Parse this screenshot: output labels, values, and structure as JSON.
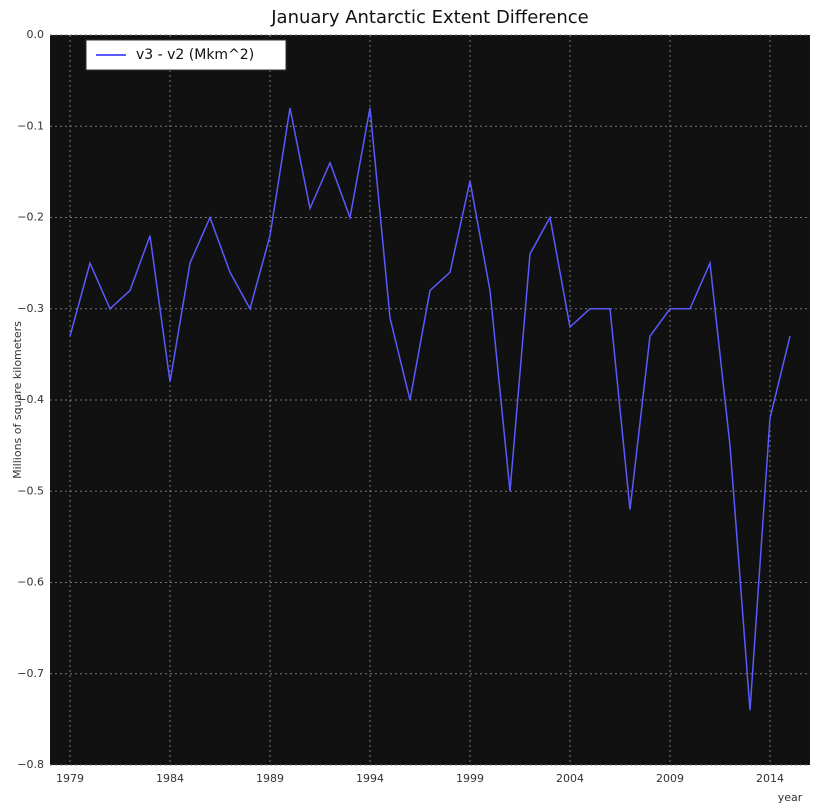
{
  "chart_data": {
    "type": "line",
    "title": "January Antarctic Extent Difference",
    "xlabel": "year",
    "ylabel": "Millions of square kilometers",
    "x": [
      1979,
      1980,
      1981,
      1982,
      1983,
      1984,
      1985,
      1986,
      1987,
      1988,
      1989,
      1990,
      1991,
      1992,
      1993,
      1994,
      1995,
      1996,
      1997,
      1998,
      1999,
      2000,
      2001,
      2002,
      2003,
      2004,
      2005,
      2006,
      2007,
      2008,
      2009,
      2010,
      2011,
      2012,
      2013,
      2014,
      2015
    ],
    "series": [
      {
        "name": "v3 - v2 (Mkm^2)",
        "color": "#5a5aff",
        "values": [
          -0.33,
          -0.25,
          -0.3,
          -0.28,
          -0.22,
          -0.38,
          -0.25,
          -0.2,
          -0.26,
          -0.3,
          -0.22,
          -0.08,
          -0.19,
          -0.14,
          -0.2,
          -0.08,
          -0.31,
          -0.4,
          -0.28,
          -0.26,
          -0.16,
          -0.28,
          -0.5,
          -0.24,
          -0.2,
          -0.32,
          -0.3,
          -0.3,
          -0.52,
          -0.33,
          -0.3,
          -0.3,
          -0.25,
          -0.45,
          -0.74,
          -0.42,
          -0.33
        ]
      }
    ],
    "xlim": [
      1978,
      2016
    ],
    "xticks": [
      1979,
      1984,
      1989,
      1994,
      1999,
      2004,
      2009,
      2014
    ],
    "ylim": [
      -0.8,
      0.0
    ],
    "yticks": [
      {
        "value": -0.8,
        "label": "−0.8"
      },
      {
        "value": -0.7,
        "label": "−0.7"
      },
      {
        "value": -0.6,
        "label": "−0.6"
      },
      {
        "value": -0.5,
        "label": "−0.5"
      },
      {
        "value": -0.4,
        "label": "−0.4"
      },
      {
        "value": -0.3,
        "label": "−0.3"
      },
      {
        "value": -0.2,
        "label": "−0.2"
      },
      {
        "value": -0.1,
        "label": "−0.1"
      },
      {
        "value": 0,
        "label": "0.0"
      }
    ],
    "grid": true,
    "legend": "upper left"
  }
}
